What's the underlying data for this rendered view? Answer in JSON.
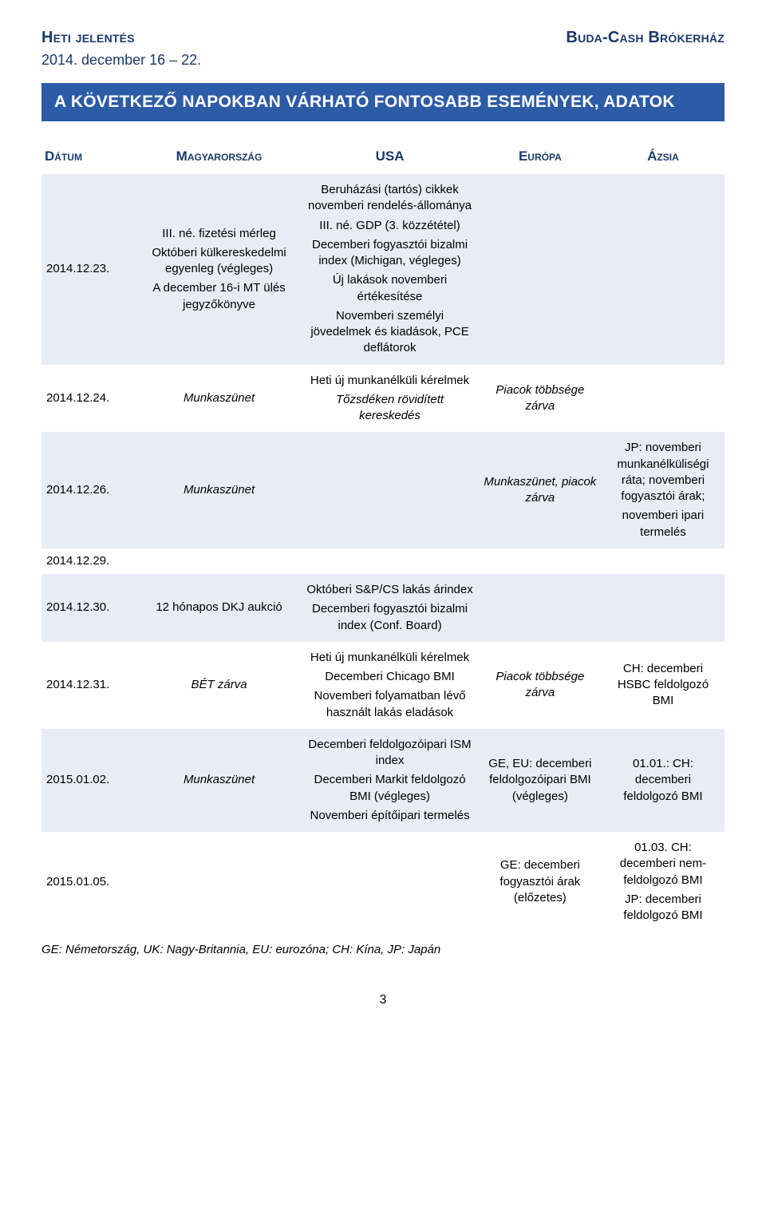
{
  "header": {
    "left": "Heti jelentés",
    "right": "Buda-Cash Brókerház",
    "subtitle": "2014. december 16 – 22."
  },
  "banner": "A KÖVETKEZŐ NAPOKBAN VÁRHATÓ FONTOSABB ESEMÉNYEK, ADATOK",
  "columns": {
    "date": "Dátum",
    "hu": "Magyarország",
    "usa": "USA",
    "eu": "Európa",
    "asia": "Ázsia"
  },
  "rows": [
    {
      "date": "2014.12.23.",
      "hu": "III. né. fizetési mérleg\nOktóberi külkereskedelmi egyenleg (végleges)\nA december 16-i MT ülés jegyzőkönyve",
      "usa": "Beruházási (tartós) cikkek novemberi rendelés-állománya\nIII. né. GDP (3. közzététel)\nDecemberi fogyasztói bizalmi index (Michigan, végleges)\nÚj lakások novemberi értékesítése\nNovemberi személyi jövedelmek és kiadások, PCE deflátorok",
      "eu": "",
      "asia": "",
      "shade": true
    },
    {
      "date": "2014.12.24.",
      "hu_italic": "Munkaszünet",
      "usa": "Heti új munkanélküli kérelmek",
      "usa_italic": "Tőzsdéken rövidített kereskedés",
      "eu_italic": "Piacok többsége zárva",
      "asia": ""
    },
    {
      "date": "2014.12.26.",
      "hu_italic": "Munkaszünet",
      "usa": "",
      "eu_italic": "Munkaszünet, piacok zárva",
      "asia": "JP: novemberi munkanélküliségi ráta; novemberi fogyasztói árak;\nnovemberi ipari termelés",
      "shade": true
    },
    {
      "date": "2014.12.29.",
      "hu": "",
      "usa": "",
      "eu": "",
      "asia": ""
    },
    {
      "date": "2014.12.30.",
      "hu": "12 hónapos DKJ aukció",
      "usa": "Októberi S&P/CS lakás árindex\nDecemberi fogyasztói bizalmi index (Conf. Board)",
      "eu": "",
      "asia": "",
      "shade": true
    },
    {
      "date": "2014.12.31.",
      "hu_italic": "BÉT zárva",
      "usa": "Heti új munkanélküli kérelmek\nDecemberi Chicago BMI\nNovemberi folyamatban lévő használt lakás eladások",
      "eu_italic": "Piacok többsége zárva",
      "asia": "CH: decemberi HSBC feldolgozó BMI"
    },
    {
      "date": "2015.01.02.",
      "hu_italic": "Munkaszünet",
      "usa": "Decemberi feldolgozóipari ISM index\nDecemberi Markit feldolgozó BMI (végleges)\nNovemberi építőipari termelés",
      "eu": "GE, EU: decemberi feldolgozóipari BMI (végleges)",
      "asia": "01.01.: CH: decemberi feldolgozó BMI",
      "shade": true
    },
    {
      "date": "2015.01.05.",
      "hu": "",
      "usa": "",
      "eu": "GE: decemberi fogyasztói árak (előzetes)",
      "asia": "01.03. CH: decemberi nem-feldolgozó BMI\nJP: decemberi feldolgozó BMI"
    }
  ],
  "footnote": "GE: Németország, UK: Nagy-Britannia, EU: eurozóna; CH: Kína, JP: Japán",
  "page_number": "3",
  "style": {
    "brand_color": "#1a3a6a",
    "banner_bg": "#2d5ca6",
    "banner_fg": "#ffffff",
    "row_shade": "#e8edf5",
    "body_font_size": 15,
    "header_font_size": 20,
    "banner_font_size": 21
  }
}
